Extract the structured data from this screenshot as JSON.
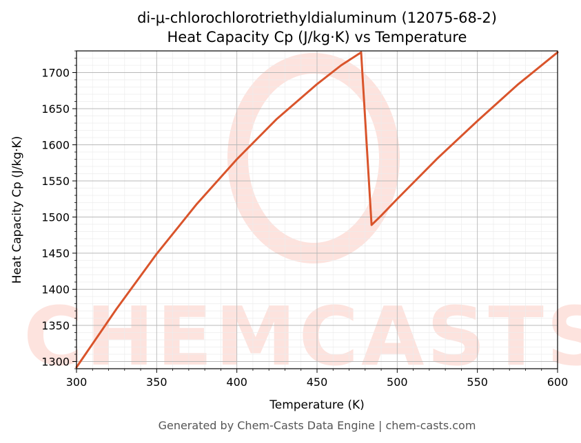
{
  "chart_data": {
    "type": "line",
    "title": "di-μ-chlorochlorotriethyldialuminum (12075-68-2)",
    "subtitle": "Heat Capacity Cp (J/kg·K) vs Temperature",
    "xlabel": "Temperature (K)",
    "ylabel": "Heat Capacity Cp (J/kg·K)",
    "xlim": [
      300,
      600
    ],
    "ylim": [
      1290,
      1730
    ],
    "xticks": [
      300,
      350,
      400,
      450,
      500,
      550,
      600
    ],
    "yticks": [
      1300,
      1350,
      1400,
      1450,
      1500,
      1550,
      1600,
      1650,
      1700
    ],
    "grid": true,
    "series": [
      {
        "color": "#d9542b",
        "x": [
          300,
          325,
          350,
          375,
          400,
          425,
          450,
          465,
          477.5,
          484,
          490,
          500,
          525,
          550,
          575,
          600
        ],
        "y": [
          1292,
          1373,
          1449,
          1518,
          1580,
          1636,
          1684,
          1710,
          1728,
          1489,
          1502,
          1525,
          1581,
          1633,
          1683,
          1728
        ]
      }
    ]
  },
  "watermark": "CHEMCASTS",
  "footer": "Generated by Chem-Casts Data Engine | chem-casts.com"
}
